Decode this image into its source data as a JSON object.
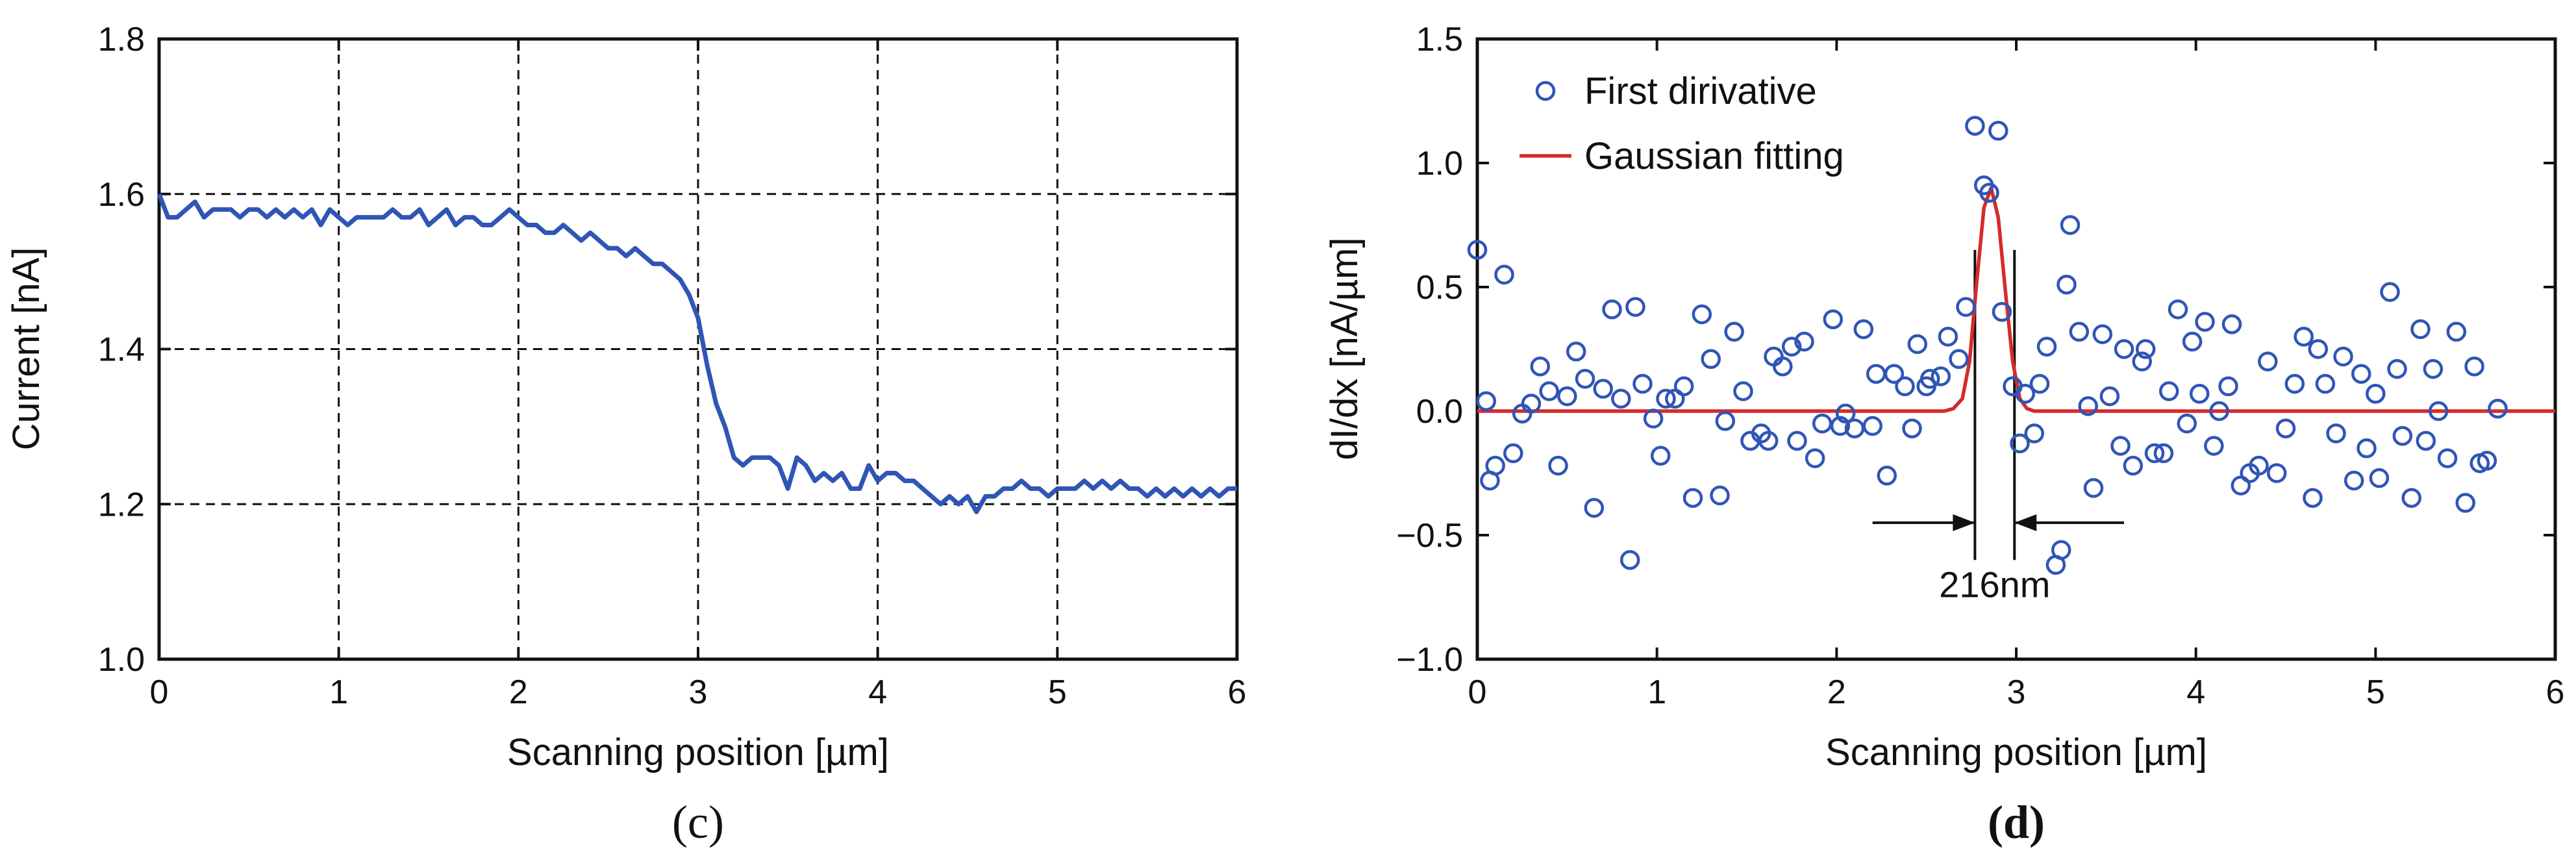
{
  "chart_data": [
    {
      "type": "line",
      "caption": "(c)",
      "xlabel": "Scanning position [µm]",
      "ylabel": "Current [nA]",
      "xlim": [
        0,
        6
      ],
      "ylim": [
        1.0,
        1.8
      ],
      "xticks": [
        "0",
        "1",
        "2",
        "3",
        "4",
        "5",
        "6"
      ],
      "yticks": [
        "1.0",
        "1.2",
        "1.4",
        "1.6",
        "1.8"
      ],
      "grid": "dashed",
      "color": "#2f55b5",
      "series": [
        {
          "x": [
            0.0,
            0.05,
            0.1,
            0.15,
            0.2,
            0.25,
            0.3,
            0.35,
            0.4,
            0.45,
            0.5,
            0.55,
            0.6,
            0.65,
            0.7,
            0.75,
            0.8,
            0.85,
            0.9,
            0.95,
            1.0,
            1.05,
            1.1,
            1.15,
            1.2,
            1.25,
            1.3,
            1.35,
            1.4,
            1.45,
            1.5,
            1.55,
            1.6,
            1.65,
            1.7,
            1.75,
            1.8,
            1.85,
            1.9,
            1.95,
            2.0,
            2.05,
            2.1,
            2.15,
            2.2,
            2.25,
            2.3,
            2.35,
            2.4,
            2.45,
            2.5,
            2.55,
            2.6,
            2.65,
            2.7,
            2.75,
            2.8,
            2.85,
            2.9,
            2.95,
            3.0,
            3.05,
            3.1,
            3.15,
            3.2,
            3.25,
            3.3,
            3.35,
            3.4,
            3.45,
            3.5,
            3.55,
            3.6,
            3.65,
            3.7,
            3.75,
            3.8,
            3.85,
            3.9,
            3.95,
            4.0,
            4.05,
            4.1,
            4.15,
            4.2,
            4.25,
            4.3,
            4.35,
            4.4,
            4.45,
            4.5,
            4.55,
            4.6,
            4.65,
            4.7,
            4.75,
            4.8,
            4.85,
            4.9,
            4.95,
            5.0,
            5.05,
            5.1,
            5.15,
            5.2,
            5.25,
            5.3,
            5.35,
            5.4,
            5.45,
            5.5,
            5.55,
            5.6,
            5.65,
            5.7,
            5.75,
            5.8,
            5.85,
            5.9,
            5.95,
            6.0
          ],
          "y": [
            1.6,
            1.57,
            1.57,
            1.58,
            1.59,
            1.57,
            1.58,
            1.58,
            1.58,
            1.57,
            1.58,
            1.58,
            1.57,
            1.58,
            1.57,
            1.58,
            1.57,
            1.58,
            1.56,
            1.58,
            1.57,
            1.56,
            1.57,
            1.57,
            1.57,
            1.57,
            1.58,
            1.57,
            1.57,
            1.58,
            1.56,
            1.57,
            1.58,
            1.56,
            1.57,
            1.57,
            1.56,
            1.56,
            1.57,
            1.58,
            1.57,
            1.56,
            1.56,
            1.55,
            1.55,
            1.56,
            1.55,
            1.54,
            1.55,
            1.54,
            1.53,
            1.53,
            1.52,
            1.53,
            1.52,
            1.51,
            1.51,
            1.5,
            1.49,
            1.47,
            1.44,
            1.38,
            1.33,
            1.3,
            1.26,
            1.25,
            1.26,
            1.26,
            1.26,
            1.25,
            1.22,
            1.26,
            1.25,
            1.23,
            1.24,
            1.23,
            1.24,
            1.22,
            1.22,
            1.25,
            1.23,
            1.24,
            1.24,
            1.23,
            1.23,
            1.22,
            1.21,
            1.2,
            1.21,
            1.2,
            1.21,
            1.19,
            1.21,
            1.21,
            1.22,
            1.22,
            1.23,
            1.22,
            1.22,
            1.21,
            1.22,
            1.22,
            1.22,
            1.23,
            1.22,
            1.23,
            1.22,
            1.23,
            1.22,
            1.22,
            1.21,
            1.22,
            1.21,
            1.22,
            1.21,
            1.22,
            1.21,
            1.22,
            1.21,
            1.22,
            1.22
          ]
        }
      ]
    },
    {
      "type": "scatter",
      "caption": "(d)",
      "xlabel": "Scanning position [µm]",
      "ylabel": "dI/dx [nA/µm]",
      "xlim": [
        0,
        6
      ],
      "ylim": [
        -1.0,
        1.5
      ],
      "xticks": [
        "0",
        "1",
        "2",
        "3",
        "4",
        "5",
        "6"
      ],
      "yticks": [
        "−1.0",
        "−0.5",
        "0.0",
        "0.5",
        "1.0",
        "1.5"
      ],
      "grid": false,
      "legend": {
        "position": "top-left"
      },
      "annotation": {
        "text": "216nm",
        "x1": 2.77,
        "x2": 2.99
      },
      "series": [
        {
          "name": "First dirivative",
          "type": "scatter",
          "color": "#2f55b5",
          "points": [
            [
              0.0,
              0.65
            ],
            [
              0.05,
              0.04
            ],
            [
              0.07,
              -0.28
            ],
            [
              0.1,
              -0.22
            ],
            [
              0.15,
              0.55
            ],
            [
              0.2,
              -0.17
            ],
            [
              0.25,
              -0.01
            ],
            [
              0.3,
              0.03
            ],
            [
              0.35,
              0.18
            ],
            [
              0.4,
              0.08
            ],
            [
              0.45,
              -0.22
            ],
            [
              0.5,
              0.06
            ],
            [
              0.55,
              0.24
            ],
            [
              0.6,
              0.13
            ],
            [
              0.65,
              -0.39
            ],
            [
              0.7,
              0.09
            ],
            [
              0.75,
              0.41
            ],
            [
              0.8,
              0.05
            ],
            [
              0.85,
              -0.6
            ],
            [
              0.88,
              0.42
            ],
            [
              0.92,
              0.11
            ],
            [
              0.98,
              -0.03
            ],
            [
              1.02,
              -0.18
            ],
            [
              1.05,
              0.05
            ],
            [
              1.1,
              0.05
            ],
            [
              1.15,
              0.1
            ],
            [
              1.2,
              -0.35
            ],
            [
              1.25,
              0.39
            ],
            [
              1.3,
              0.21
            ],
            [
              1.35,
              -0.34
            ],
            [
              1.38,
              -0.04
            ],
            [
              1.43,
              0.32
            ],
            [
              1.48,
              0.08
            ],
            [
              1.52,
              -0.12
            ],
            [
              1.58,
              -0.09
            ],
            [
              1.62,
              -0.12
            ],
            [
              1.65,
              0.22
            ],
            [
              1.7,
              0.18
            ],
            [
              1.75,
              0.26
            ],
            [
              1.78,
              -0.12
            ],
            [
              1.82,
              0.28
            ],
            [
              1.88,
              -0.19
            ],
            [
              1.92,
              -0.05
            ],
            [
              1.98,
              0.37
            ],
            [
              2.02,
              -0.06
            ],
            [
              2.05,
              -0.01
            ],
            [
              2.1,
              -0.07
            ],
            [
              2.15,
              0.33
            ],
            [
              2.2,
              -0.06
            ],
            [
              2.22,
              0.15
            ],
            [
              2.28,
              -0.26
            ],
            [
              2.32,
              0.15
            ],
            [
              2.38,
              0.1
            ],
            [
              2.42,
              -0.07
            ],
            [
              2.45,
              0.27
            ],
            [
              2.5,
              0.1
            ],
            [
              2.52,
              0.13
            ],
            [
              2.58,
              0.14
            ],
            [
              2.62,
              0.3
            ],
            [
              2.68,
              0.21
            ],
            [
              2.72,
              0.42
            ],
            [
              2.77,
              1.15
            ],
            [
              2.82,
              0.91
            ],
            [
              2.85,
              0.88
            ],
            [
              2.9,
              1.13
            ],
            [
              2.92,
              0.4
            ],
            [
              2.98,
              0.1
            ],
            [
              3.02,
              -0.13
            ],
            [
              3.05,
              0.07
            ],
            [
              3.1,
              -0.09
            ],
            [
              3.13,
              0.11
            ],
            [
              3.17,
              0.26
            ],
            [
              3.22,
              -0.62
            ],
            [
              3.25,
              -0.56
            ],
            [
              3.28,
              0.51
            ],
            [
              3.3,
              0.75
            ],
            [
              3.35,
              0.32
            ],
            [
              3.4,
              0.02
            ],
            [
              3.43,
              -0.31
            ],
            [
              3.48,
              0.31
            ],
            [
              3.52,
              0.06
            ],
            [
              3.58,
              -0.14
            ],
            [
              3.6,
              0.25
            ],
            [
              3.65,
              -0.22
            ],
            [
              3.7,
              0.2
            ],
            [
              3.72,
              0.25
            ],
            [
              3.77,
              -0.17
            ],
            [
              3.82,
              -0.17
            ],
            [
              3.85,
              0.08
            ],
            [
              3.9,
              0.41
            ],
            [
              3.95,
              -0.05
            ],
            [
              3.98,
              0.28
            ],
            [
              4.02,
              0.07
            ],
            [
              4.05,
              0.36
            ],
            [
              4.1,
              -0.14
            ],
            [
              4.13,
              0.0
            ],
            [
              4.18,
              0.1
            ],
            [
              4.2,
              0.35
            ],
            [
              4.25,
              -0.3
            ],
            [
              4.3,
              -0.25
            ],
            [
              4.35,
              -0.22
            ],
            [
              4.4,
              0.2
            ],
            [
              4.45,
              -0.25
            ],
            [
              4.5,
              -0.07
            ],
            [
              4.55,
              0.11
            ],
            [
              4.6,
              0.3
            ],
            [
              4.65,
              -0.35
            ],
            [
              4.68,
              0.25
            ],
            [
              4.72,
              0.11
            ],
            [
              4.78,
              -0.09
            ],
            [
              4.82,
              0.22
            ],
            [
              4.88,
              -0.28
            ],
            [
              4.92,
              0.15
            ],
            [
              4.95,
              -0.15
            ],
            [
              5.0,
              0.07
            ],
            [
              5.02,
              -0.27
            ],
            [
              5.08,
              0.48
            ],
            [
              5.12,
              0.17
            ],
            [
              5.15,
              -0.1
            ],
            [
              5.2,
              -0.35
            ],
            [
              5.25,
              0.33
            ],
            [
              5.28,
              -0.12
            ],
            [
              5.32,
              0.17
            ],
            [
              5.35,
              0.0
            ],
            [
              5.4,
              -0.19
            ],
            [
              5.45,
              0.32
            ],
            [
              5.5,
              -0.37
            ],
            [
              5.55,
              0.18
            ],
            [
              5.58,
              -0.21
            ],
            [
              5.62,
              -0.2
            ],
            [
              5.68,
              0.01
            ]
          ]
        },
        {
          "name": "Gaussian fitting",
          "type": "line",
          "color": "#d62a2a",
          "x": [
            0.0,
            0.5,
            1.0,
            1.5,
            2.0,
            2.5,
            2.6,
            2.65,
            2.7,
            2.74,
            2.78,
            2.82,
            2.86,
            2.9,
            2.94,
            2.98,
            3.02,
            3.06,
            3.1,
            3.15,
            3.2,
            3.5,
            4.0,
            4.5,
            5.0,
            5.5,
            6.0
          ],
          "y": [
            0,
            0,
            0,
            0,
            0,
            0,
            0,
            0.01,
            0.05,
            0.2,
            0.52,
            0.82,
            0.9,
            0.78,
            0.48,
            0.2,
            0.05,
            0.01,
            0,
            0,
            0,
            0,
            0,
            0,
            0,
            0,
            0
          ]
        }
      ]
    }
  ]
}
